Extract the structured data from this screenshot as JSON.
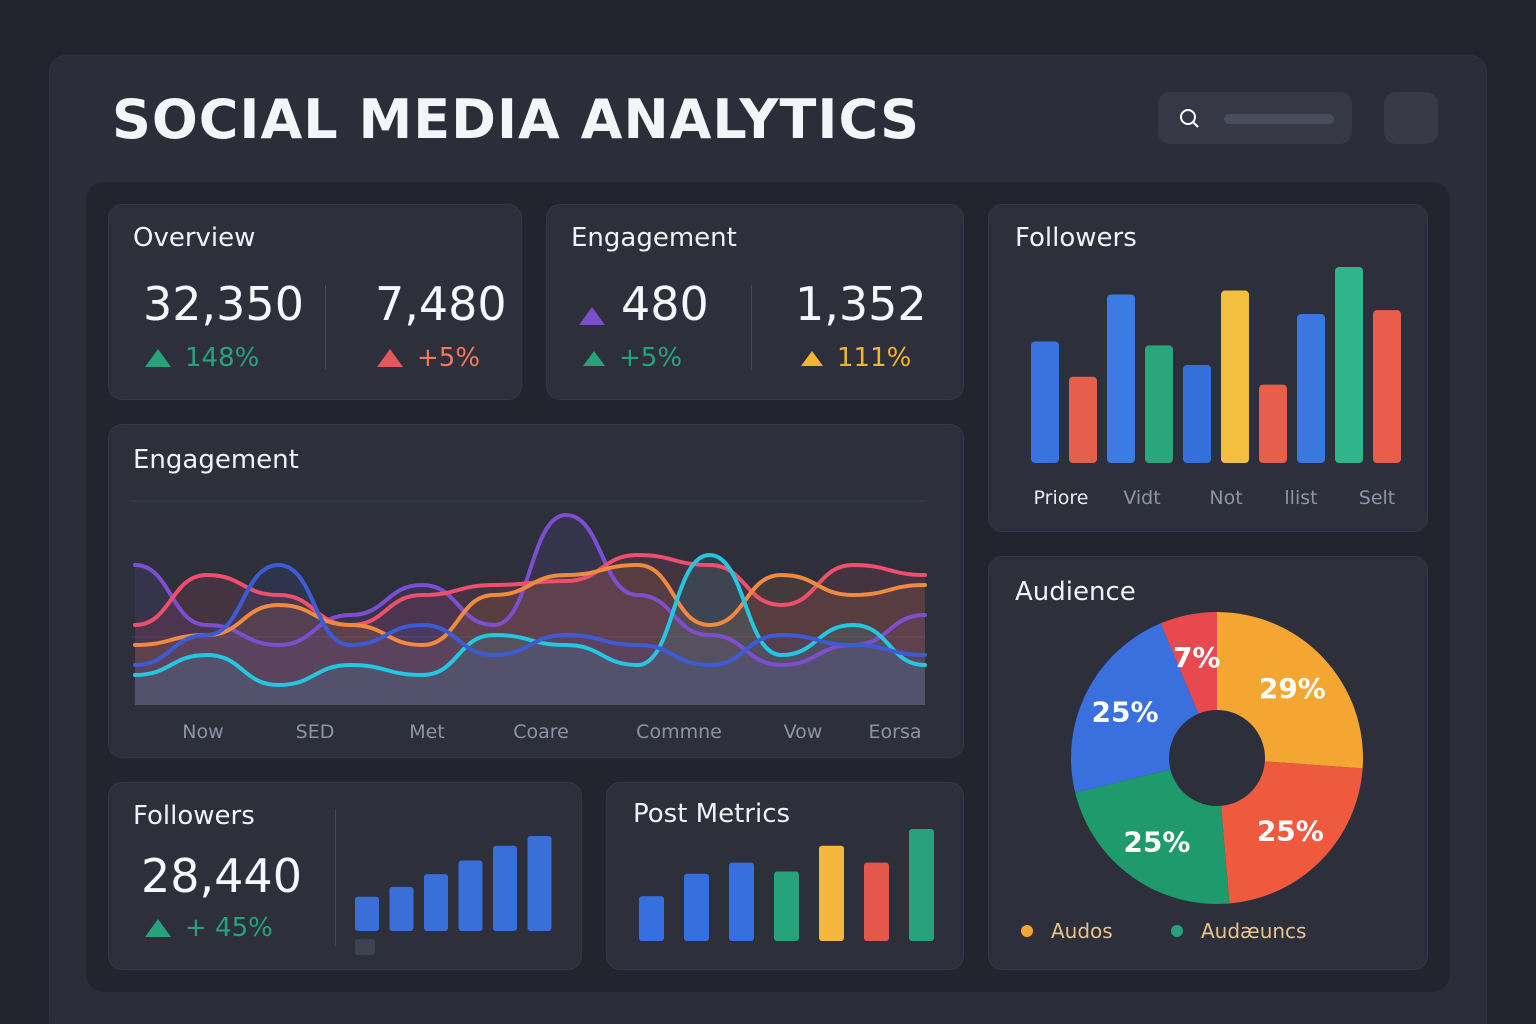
{
  "header": {
    "title": "SOCIAL MEDIA ANALYTICS",
    "search_icon": "search-icon"
  },
  "overview": {
    "title": "Overview",
    "metrics": [
      {
        "value": "32,350",
        "delta": "148%",
        "color": "#27a37c"
      },
      {
        "value": "7,480",
        "delta": "+5%",
        "color": "#e4585c"
      }
    ]
  },
  "engagement_summary": {
    "title": "Engagement",
    "metrics": [
      {
        "value": "480",
        "delta": "+5%",
        "color": "#27a37c",
        "value_icon_color": "#7b4fc8"
      },
      {
        "value": "1,352",
        "delta": "111%",
        "color": "#f3b431"
      }
    ]
  },
  "followers_chart": {
    "title": "Followers",
    "labels": [
      "Priore",
      "Vidt",
      "Not",
      "llist",
      "Selt"
    ],
    "chart_data": {
      "type": "bar",
      "values": [
        62,
        44,
        86,
        60,
        50,
        88,
        40,
        76,
        100,
        78
      ],
      "colors": [
        "#3873df",
        "#e4604c",
        "#3a7be4",
        "#2aa67c",
        "#3470dc",
        "#f4be3e",
        "#e75f4a",
        "#3a77df",
        "#2fb58a",
        "#e85e4a"
      ]
    }
  },
  "engagement_chart": {
    "title": "Engagement",
    "x_labels": [
      "Now",
      "SED",
      "Met",
      "Coare",
      "Commne",
      "Vow",
      "Eorsa"
    ],
    "chart_data": {
      "type": "line",
      "series": [
        {
          "color": "#7d4fd0",
          "values": [
            70,
            40,
            30,
            45,
            60,
            40,
            95,
            55,
            35,
            20,
            30,
            45
          ]
        },
        {
          "color": "#ef4f6d",
          "values": [
            40,
            65,
            55,
            40,
            55,
            60,
            62,
            75,
            70,
            50,
            70,
            65
          ]
        },
        {
          "color": "#f08a3e",
          "values": [
            30,
            35,
            50,
            40,
            30,
            55,
            65,
            70,
            40,
            65,
            55,
            60
          ]
        },
        {
          "color": "#24c6e0",
          "values": [
            15,
            25,
            10,
            20,
            15,
            35,
            30,
            20,
            75,
            25,
            40,
            20
          ]
        },
        {
          "color": "#3e5bd6",
          "values": [
            20,
            35,
            70,
            30,
            40,
            25,
            35,
            30,
            20,
            35,
            30,
            25
          ]
        }
      ]
    }
  },
  "followers_small": {
    "title": "Followers",
    "value": "28,440",
    "delta": "+ 45%",
    "chart_data": {
      "type": "bar",
      "values": [
        35,
        45,
        58,
        72,
        87,
        97
      ]
    }
  },
  "post_metrics": {
    "title": "Post Metrics",
    "chart_data": {
      "type": "bar",
      "values": [
        40,
        60,
        70,
        62,
        85,
        70,
        100
      ],
      "colors": [
        "#3670de",
        "#3670de",
        "#3670de",
        "#27a37c",
        "#f4b63e",
        "#e4584c",
        "#27a37c"
      ]
    }
  },
  "audience": {
    "title": "Audience",
    "chart_data": {
      "type": "pie",
      "slices": [
        {
          "label": "29%",
          "value": 29,
          "color": "#f4a632"
        },
        {
          "label": "25%",
          "value": 25,
          "color": "#ef5a3f"
        },
        {
          "label": "25%",
          "value": 25,
          "color": "#1f9a6c"
        },
        {
          "label": "25%",
          "value": 25,
          "color": "#3a6fde"
        },
        {
          "label": "7%",
          "value": 7,
          "color": "#e8494e"
        }
      ]
    },
    "legend": [
      {
        "label": "Audos",
        "color": "#f4a632"
      },
      {
        "label": "Audæuncs",
        "color": "#27a37c"
      }
    ]
  }
}
